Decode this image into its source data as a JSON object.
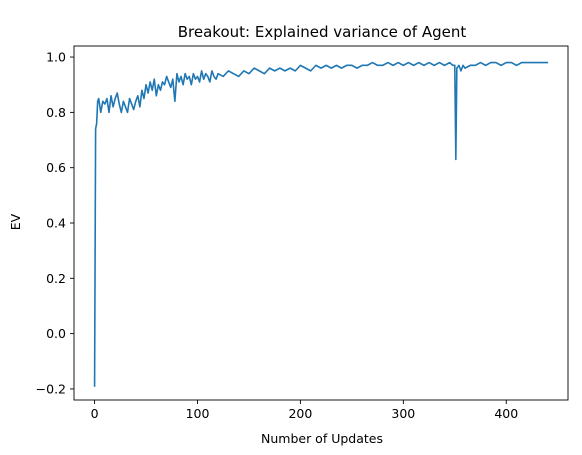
{
  "chart_data": {
    "type": "line",
    "title": "Breakout: Explained variance of Agent",
    "xlabel": "Number of Updates",
    "ylabel": "EV",
    "xlim": [
      -20,
      460
    ],
    "ylim": [
      -0.24,
      1.04
    ],
    "xticks": [
      0,
      100,
      200,
      300,
      400
    ],
    "xtick_labels": [
      "0",
      "100",
      "200",
      "300",
      "400"
    ],
    "yticks": [
      -0.2,
      0.0,
      0.2,
      0.4,
      0.6,
      0.8,
      1.0
    ],
    "ytick_labels": [
      "−0.2",
      "0.0",
      "0.2",
      "0.4",
      "0.6",
      "0.8",
      "1.0"
    ],
    "grid": false,
    "legend": "none",
    "series": [
      {
        "color": "#1f77b4",
        "x": [
          0,
          1,
          2,
          3,
          4,
          6,
          8,
          10,
          12,
          14,
          16,
          18,
          20,
          22,
          24,
          26,
          28,
          30,
          32,
          34,
          36,
          38,
          40,
          42,
          44,
          46,
          48,
          50,
          52,
          54,
          56,
          58,
          60,
          62,
          64,
          66,
          68,
          70,
          72,
          74,
          76,
          78,
          80,
          82,
          84,
          86,
          88,
          90,
          92,
          94,
          96,
          98,
          100,
          102,
          104,
          106,
          108,
          110,
          112,
          114,
          116,
          118,
          120,
          125,
          130,
          135,
          140,
          145,
          150,
          155,
          160,
          165,
          170,
          175,
          180,
          185,
          190,
          195,
          200,
          205,
          210,
          215,
          220,
          225,
          230,
          235,
          240,
          245,
          250,
          255,
          260,
          265,
          270,
          275,
          280,
          285,
          290,
          295,
          300,
          305,
          310,
          315,
          320,
          325,
          330,
          335,
          340,
          345,
          348,
          350,
          351,
          352,
          354,
          356,
          358,
          360,
          365,
          370,
          375,
          380,
          385,
          390,
          395,
          400,
          405,
          410,
          415,
          420,
          425,
          430,
          435,
          440
        ],
        "y": [
          -0.19,
          0.74,
          0.76,
          0.84,
          0.85,
          0.8,
          0.84,
          0.83,
          0.85,
          0.8,
          0.86,
          0.82,
          0.85,
          0.87,
          0.83,
          0.8,
          0.84,
          0.82,
          0.8,
          0.85,
          0.83,
          0.81,
          0.84,
          0.86,
          0.82,
          0.88,
          0.85,
          0.9,
          0.87,
          0.91,
          0.88,
          0.92,
          0.86,
          0.9,
          0.88,
          0.91,
          0.9,
          0.93,
          0.91,
          0.89,
          0.92,
          0.84,
          0.94,
          0.91,
          0.93,
          0.9,
          0.94,
          0.92,
          0.93,
          0.9,
          0.94,
          0.92,
          0.93,
          0.91,
          0.95,
          0.92,
          0.94,
          0.93,
          0.91,
          0.95,
          0.93,
          0.92,
          0.94,
          0.93,
          0.95,
          0.94,
          0.93,
          0.95,
          0.94,
          0.96,
          0.95,
          0.94,
          0.96,
          0.95,
          0.96,
          0.95,
          0.96,
          0.95,
          0.97,
          0.96,
          0.95,
          0.97,
          0.96,
          0.97,
          0.96,
          0.97,
          0.96,
          0.97,
          0.97,
          0.96,
          0.97,
          0.97,
          0.98,
          0.97,
          0.97,
          0.98,
          0.97,
          0.98,
          0.97,
          0.98,
          0.97,
          0.98,
          0.97,
          0.98,
          0.97,
          0.98,
          0.97,
          0.98,
          0.97,
          0.97,
          0.63,
          0.96,
          0.97,
          0.95,
          0.97,
          0.96,
          0.97,
          0.97,
          0.98,
          0.97,
          0.98,
          0.98,
          0.97,
          0.98,
          0.98,
          0.97,
          0.98,
          0.98,
          0.98,
          0.98,
          0.98,
          0.98
        ]
      }
    ]
  }
}
